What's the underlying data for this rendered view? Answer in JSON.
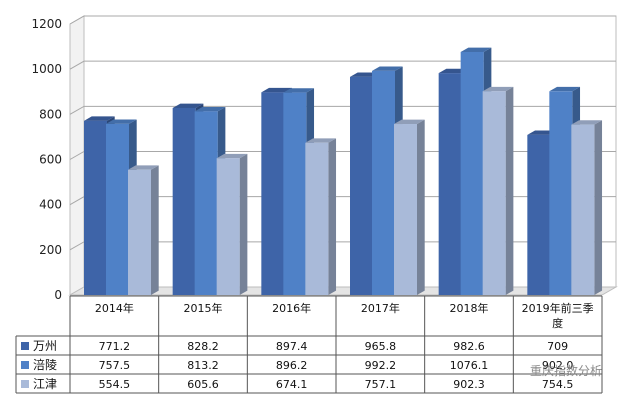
{
  "chart_data": {
    "type": "bar",
    "categories": [
      "2014年",
      "2015年",
      "2016年",
      "2017年",
      "2018年",
      "2019年前三季度"
    ],
    "series": [
      {
        "name": "万州",
        "values": [
          771.2,
          828.2,
          897.4,
          965.8,
          982.6,
          709
        ],
        "labels": [
          "771.2",
          "828.2",
          "897.4",
          "965.8",
          "982.6",
          "709"
        ]
      },
      {
        "name": "涪陵",
        "values": [
          757.5,
          813.2,
          896.2,
          992.2,
          1076.1,
          902
        ],
        "labels": [
          "757.5",
          "813.2",
          "896.2",
          "992.2",
          "1076.1",
          "902.0"
        ]
      },
      {
        "name": "江津",
        "values": [
          554.5,
          605.6,
          674.1,
          757.1,
          902.3,
          754.5
        ],
        "labels": [
          "554.5",
          "605.6",
          "674.1",
          "757.1",
          "902.3",
          "754.5"
        ]
      }
    ],
    "y_ticks": [
      "0",
      "200",
      "400",
      "600",
      "800",
      "1000",
      "1200"
    ],
    "ylim": [
      0,
      1200
    ],
    "grid": true,
    "legend": "data-table",
    "three_d": true,
    "colors": [
      "#3e64a8",
      "#4f81c7",
      "#a9bad9"
    ]
  },
  "watermark": "重庆指数分析"
}
